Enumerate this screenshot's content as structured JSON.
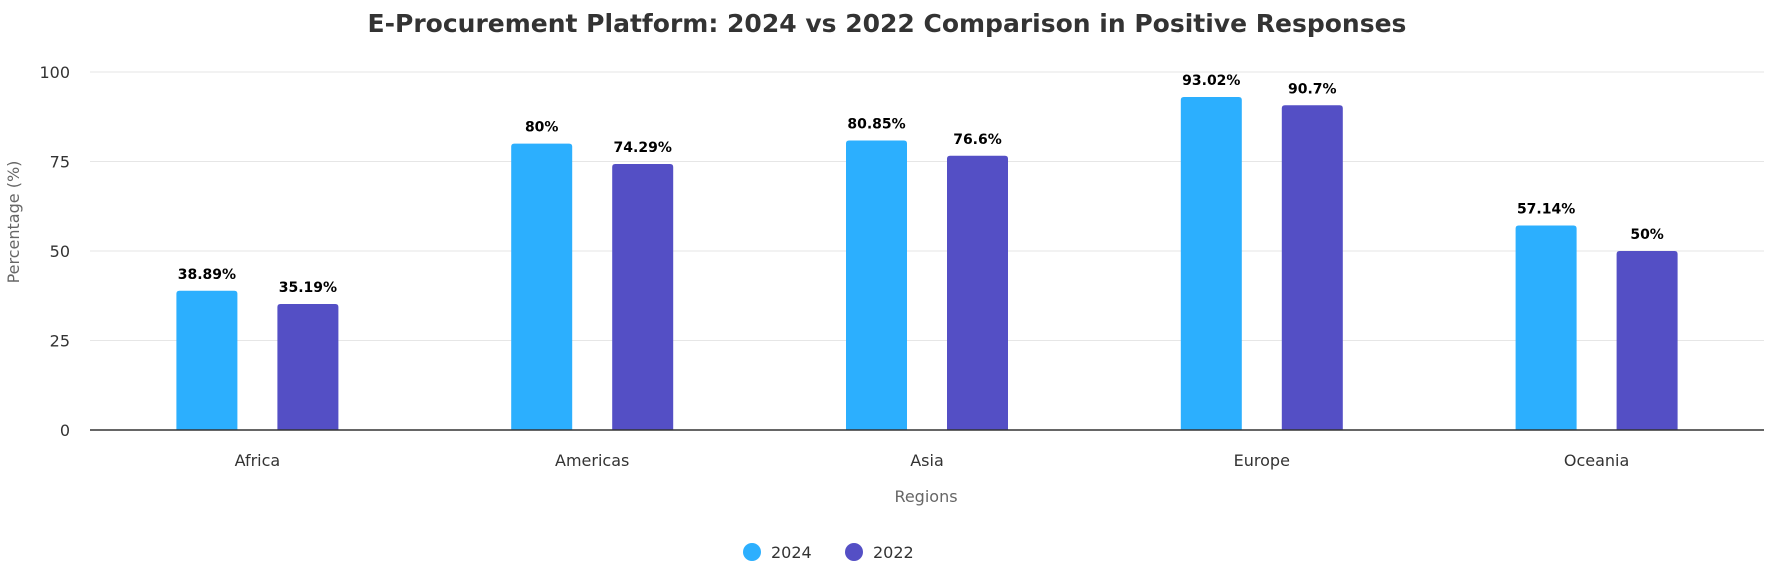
{
  "chart_data": {
    "type": "bar",
    "title": "E-Procurement Platform: 2024 vs 2022 Comparison in Positive Responses",
    "xlabel": "Regions",
    "ylabel": "Percentage (%)",
    "categories": [
      "Africa",
      "Americas",
      "Asia",
      "Europe",
      "Oceania"
    ],
    "series": [
      {
        "name": "2024",
        "color": "#2caffe",
        "values": [
          38.89,
          80,
          80.85,
          93.02,
          57.14
        ],
        "labels": [
          "38.89%",
          "80%",
          "80.85%",
          "93.02%",
          "57.14%"
        ]
      },
      {
        "name": "2022",
        "color": "#544fc5",
        "values": [
          35.19,
          74.29,
          76.6,
          90.7,
          50
        ],
        "labels": [
          "35.19%",
          "74.29%",
          "76.6%",
          "90.7%",
          "50%"
        ]
      }
    ],
    "ylim": [
      0,
      100
    ],
    "yticks": [
      "0",
      "25",
      "50",
      "75",
      "100"
    ],
    "grid": true,
    "legend_position": "bottom-center"
  }
}
